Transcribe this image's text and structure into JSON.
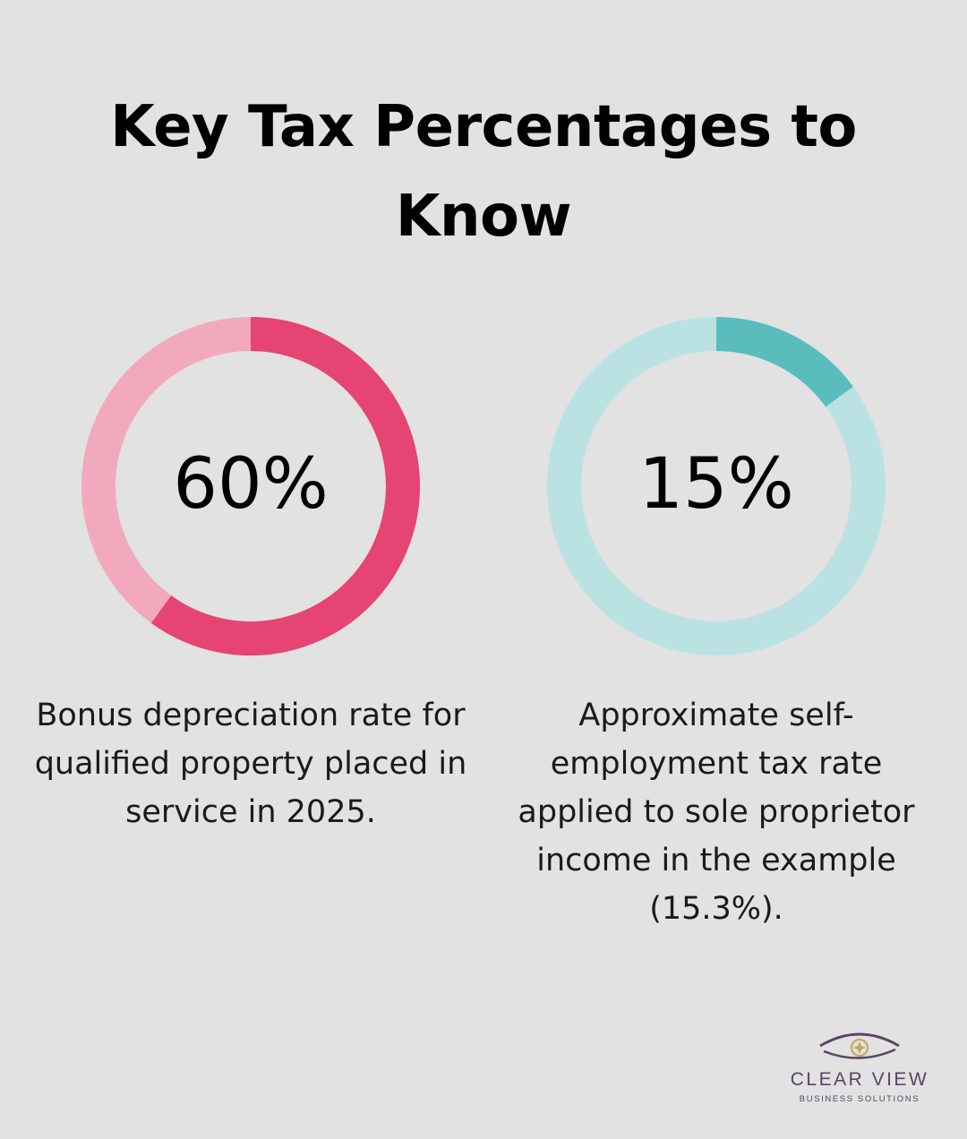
{
  "title": "Key Tax Percentages to Know",
  "chart_data": [
    {
      "type": "pie",
      "value": 60,
      "label": "60%",
      "caption": "Bonus depreciation rate for qualified property placed in service in 2025.",
      "color_fill": "#e54474",
      "color_track": "#f2a9be"
    },
    {
      "type": "pie",
      "value": 15,
      "label": "15%",
      "caption": "Approximate self-employment tax rate applied to sole proprietor income in the example (15.3%).",
      "color_fill": "#5bbcbd",
      "color_track": "#bae2e3"
    }
  ],
  "logo": {
    "name": "CLEAR VIEW",
    "tagline": "BUSINESS SOLUTIONS",
    "color_primary": "#5a4468",
    "color_accent": "#c9a35a",
    "icon": "eye-star-icon"
  }
}
